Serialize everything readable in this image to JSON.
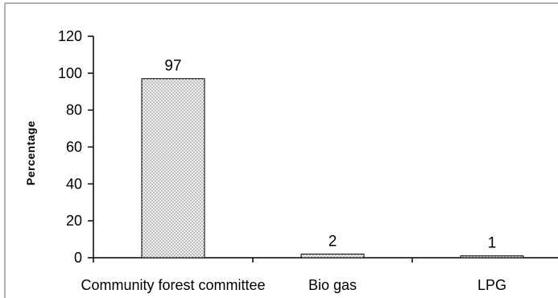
{
  "chart_data": {
    "type": "bar",
    "categories": [
      "Community forest committee",
      "Bio gas",
      "LPG"
    ],
    "values": [
      97,
      2,
      1
    ],
    "data_labels": [
      "97",
      "2",
      "1"
    ],
    "title": "",
    "xlabel": "",
    "ylabel": "Percentage",
    "ylim": [
      0,
      120
    ],
    "yticks": [
      0,
      20,
      40,
      60,
      80,
      100,
      120
    ],
    "grid": false,
    "legend": "none",
    "bar_fill": "#e8e8e8",
    "bar_stroke": "#000000",
    "frame_color": "#999999"
  }
}
